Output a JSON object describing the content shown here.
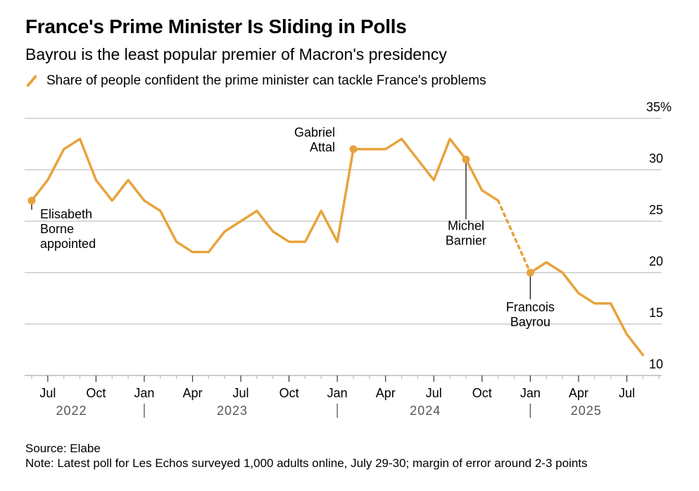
{
  "header": {
    "title": "France's Prime Minister Is Sliding in Polls",
    "subtitle": "Bayrou is the least popular premier of Macron's presidency",
    "legend_label": "Share of people confident the prime minister can tackle France's problems"
  },
  "footer": {
    "source": "Source: Elabe",
    "note": "Note: Latest poll for Les Echos surveyed 1,000 adults online, July 29-30; margin of error around 2-3 points"
  },
  "colors": {
    "accent": "#E8A33D",
    "grid": "#cccccc",
    "year_text": "#555555"
  },
  "chart_data": {
    "type": "line",
    "title": "France's Prime Minister Is Sliding in Polls",
    "subtitle": "Bayrou is the least popular premier of Macron's presidency",
    "xlabel": "",
    "ylabel": "Share of people confident the prime minister can tackle France's problems (%)",
    "ylim": [
      10,
      35
    ],
    "y_ticks": [
      "10",
      "15",
      "20",
      "25",
      "30",
      "35%"
    ],
    "y_tick_values": [
      10,
      15,
      20,
      25,
      30,
      35
    ],
    "grid": true,
    "legend_position": "top-left",
    "x_range": [
      "2022-05",
      "2025-09"
    ],
    "x_tick_labels": [
      {
        "label": "Jul",
        "month": "2022-07"
      },
      {
        "label": "Oct",
        "month": "2022-10"
      },
      {
        "label": "Jan",
        "month": "2023-01"
      },
      {
        "label": "Apr",
        "month": "2023-04"
      },
      {
        "label": "Jul",
        "month": "2023-07"
      },
      {
        "label": "Oct",
        "month": "2023-10"
      },
      {
        "label": "Jan",
        "month": "2024-01"
      },
      {
        "label": "Apr",
        "month": "2024-04"
      },
      {
        "label": "Jul",
        "month": "2024-07"
      },
      {
        "label": "Oct",
        "month": "2024-10"
      },
      {
        "label": "Jan",
        "month": "2025-01"
      },
      {
        "label": "Apr",
        "month": "2025-04"
      },
      {
        "label": "Jul",
        "month": "2025-07"
      }
    ],
    "year_labels": [
      {
        "label": "2022",
        "month": "2022-09"
      },
      {
        "label": "2023",
        "month": "2023-07"
      },
      {
        "label": "2024",
        "month": "2024-07"
      },
      {
        "label": "2025",
        "month": "2025-05"
      }
    ],
    "year_dividers": [
      "2023-01",
      "2024-01",
      "2025-01"
    ],
    "series": [
      {
        "name": "Share of people confident the prime minister can tackle France's problems",
        "points": [
          {
            "month": "2022-06",
            "value": 27
          },
          {
            "month": "2022-07",
            "value": 29
          },
          {
            "month": "2022-08",
            "value": 32
          },
          {
            "month": "2022-09",
            "value": 33
          },
          {
            "month": "2022-10",
            "value": 29
          },
          {
            "month": "2022-11",
            "value": 27
          },
          {
            "month": "2022-12",
            "value": 29
          },
          {
            "month": "2023-01",
            "value": 27
          },
          {
            "month": "2023-02",
            "value": 26
          },
          {
            "month": "2023-03",
            "value": 23
          },
          {
            "month": "2023-04",
            "value": 22
          },
          {
            "month": "2023-05",
            "value": 22
          },
          {
            "month": "2023-06",
            "value": 24
          },
          {
            "month": "2023-07",
            "value": 25
          },
          {
            "month": "2023-08",
            "value": 26
          },
          {
            "month": "2023-09",
            "value": 24
          },
          {
            "month": "2023-10",
            "value": 23
          },
          {
            "month": "2023-11",
            "value": 23
          },
          {
            "month": "2023-12",
            "value": 26
          },
          {
            "month": "2024-01",
            "value": 23
          },
          {
            "month": "2024-02",
            "value": 32
          },
          {
            "month": "2024-03",
            "value": 32
          },
          {
            "month": "2024-04",
            "value": 32
          },
          {
            "month": "2024-05",
            "value": 33
          },
          {
            "month": "2024-06",
            "value": 31
          },
          {
            "month": "2024-07",
            "value": 29
          },
          {
            "month": "2024-08",
            "value": 33
          },
          {
            "month": "2024-09",
            "value": 31
          },
          {
            "month": "2024-10",
            "value": 28
          },
          {
            "month": "2024-11",
            "value": 27
          },
          {
            "month": "2025-01",
            "value": 20
          },
          {
            "month": "2025-02",
            "value": 21
          },
          {
            "month": "2025-03",
            "value": 20
          },
          {
            "month": "2025-04",
            "value": 18
          },
          {
            "month": "2025-05",
            "value": 17
          },
          {
            "month": "2025-06",
            "value": 17
          },
          {
            "month": "2025-07",
            "value": 14
          },
          {
            "month": "2025-08",
            "value": 12
          }
        ],
        "dotted_gap": {
          "from": "2024-11",
          "to": "2025-01"
        }
      }
    ],
    "annotations": [
      {
        "label": [
          "Elisabeth",
          "Borne",
          "appointed"
        ],
        "month": "2022-06",
        "value": 27,
        "placement": "below-right"
      },
      {
        "label": [
          "Gabriel",
          "Attal"
        ],
        "month": "2024-02",
        "value": 32,
        "placement": "left"
      },
      {
        "label": [
          "Michel",
          "Barnier"
        ],
        "month": "2024-09",
        "value": 31,
        "placement": "below"
      },
      {
        "label": [
          "Francois",
          "Bayrou"
        ],
        "month": "2025-01",
        "value": 20,
        "placement": "below"
      }
    ]
  }
}
